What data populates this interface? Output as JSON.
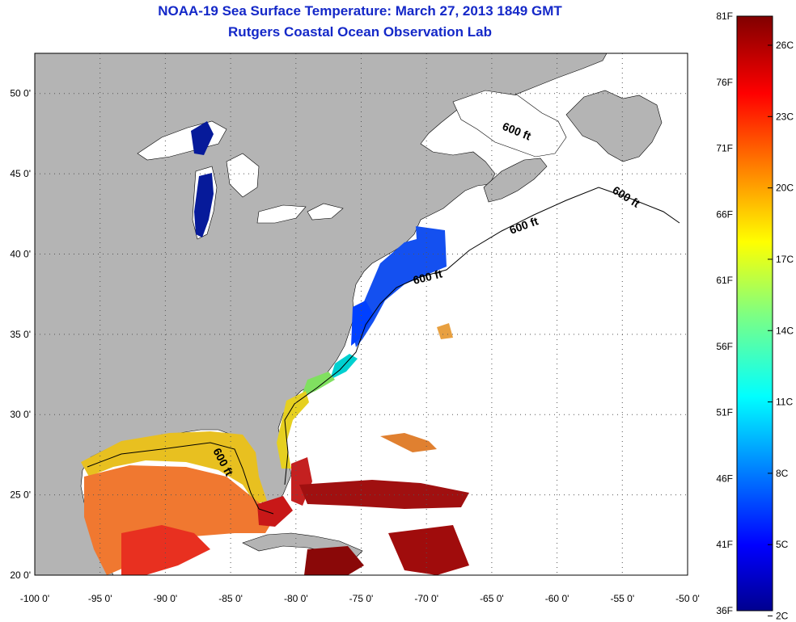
{
  "header": {
    "title": "NOAA-19 Sea Surface Temperature:  March 27, 2013 1849 GMT",
    "subtitle": "Rutgers Coastal Ocean Observation Lab"
  },
  "map": {
    "lon_range": [
      -100,
      -50
    ],
    "lat_range": [
      20,
      52.5
    ],
    "lon_ticks": [
      "-100 0'",
      "-95 0'",
      "-90 0'",
      "-85 0'",
      "-80 0'",
      "-75 0'",
      "-70 0'",
      "-65 0'",
      "-60 0'",
      "-55 0'",
      "-50 0'"
    ],
    "lat_ticks": [
      "20 0'",
      "25 0'",
      "30 0'",
      "35 0'",
      "40 0'",
      "45 0'",
      "50 0'"
    ],
    "grid": "dotted",
    "land_color": "#b4b4b4",
    "ocean_color": "#ffffff",
    "contour_labels": [
      "600 ft",
      "600 ft",
      "600 ft",
      "600 ft",
      "600 ft"
    ]
  },
  "colorbar": {
    "fahrenheit_labels": [
      "81F",
      "76F",
      "71F",
      "66F",
      "61F",
      "56F",
      "51F",
      "46F",
      "41F",
      "36F"
    ],
    "celsius_labels": [
      "26C",
      "23C",
      "20C",
      "17C",
      "14C",
      "11C",
      "8C",
      "5C",
      "2C"
    ],
    "colormap": "jet",
    "colors": [
      "#00008f",
      "#0000ff",
      "#0080ff",
      "#00ffff",
      "#80ff80",
      "#ffff00",
      "#ff8000",
      "#ff0000",
      "#800000"
    ]
  }
}
